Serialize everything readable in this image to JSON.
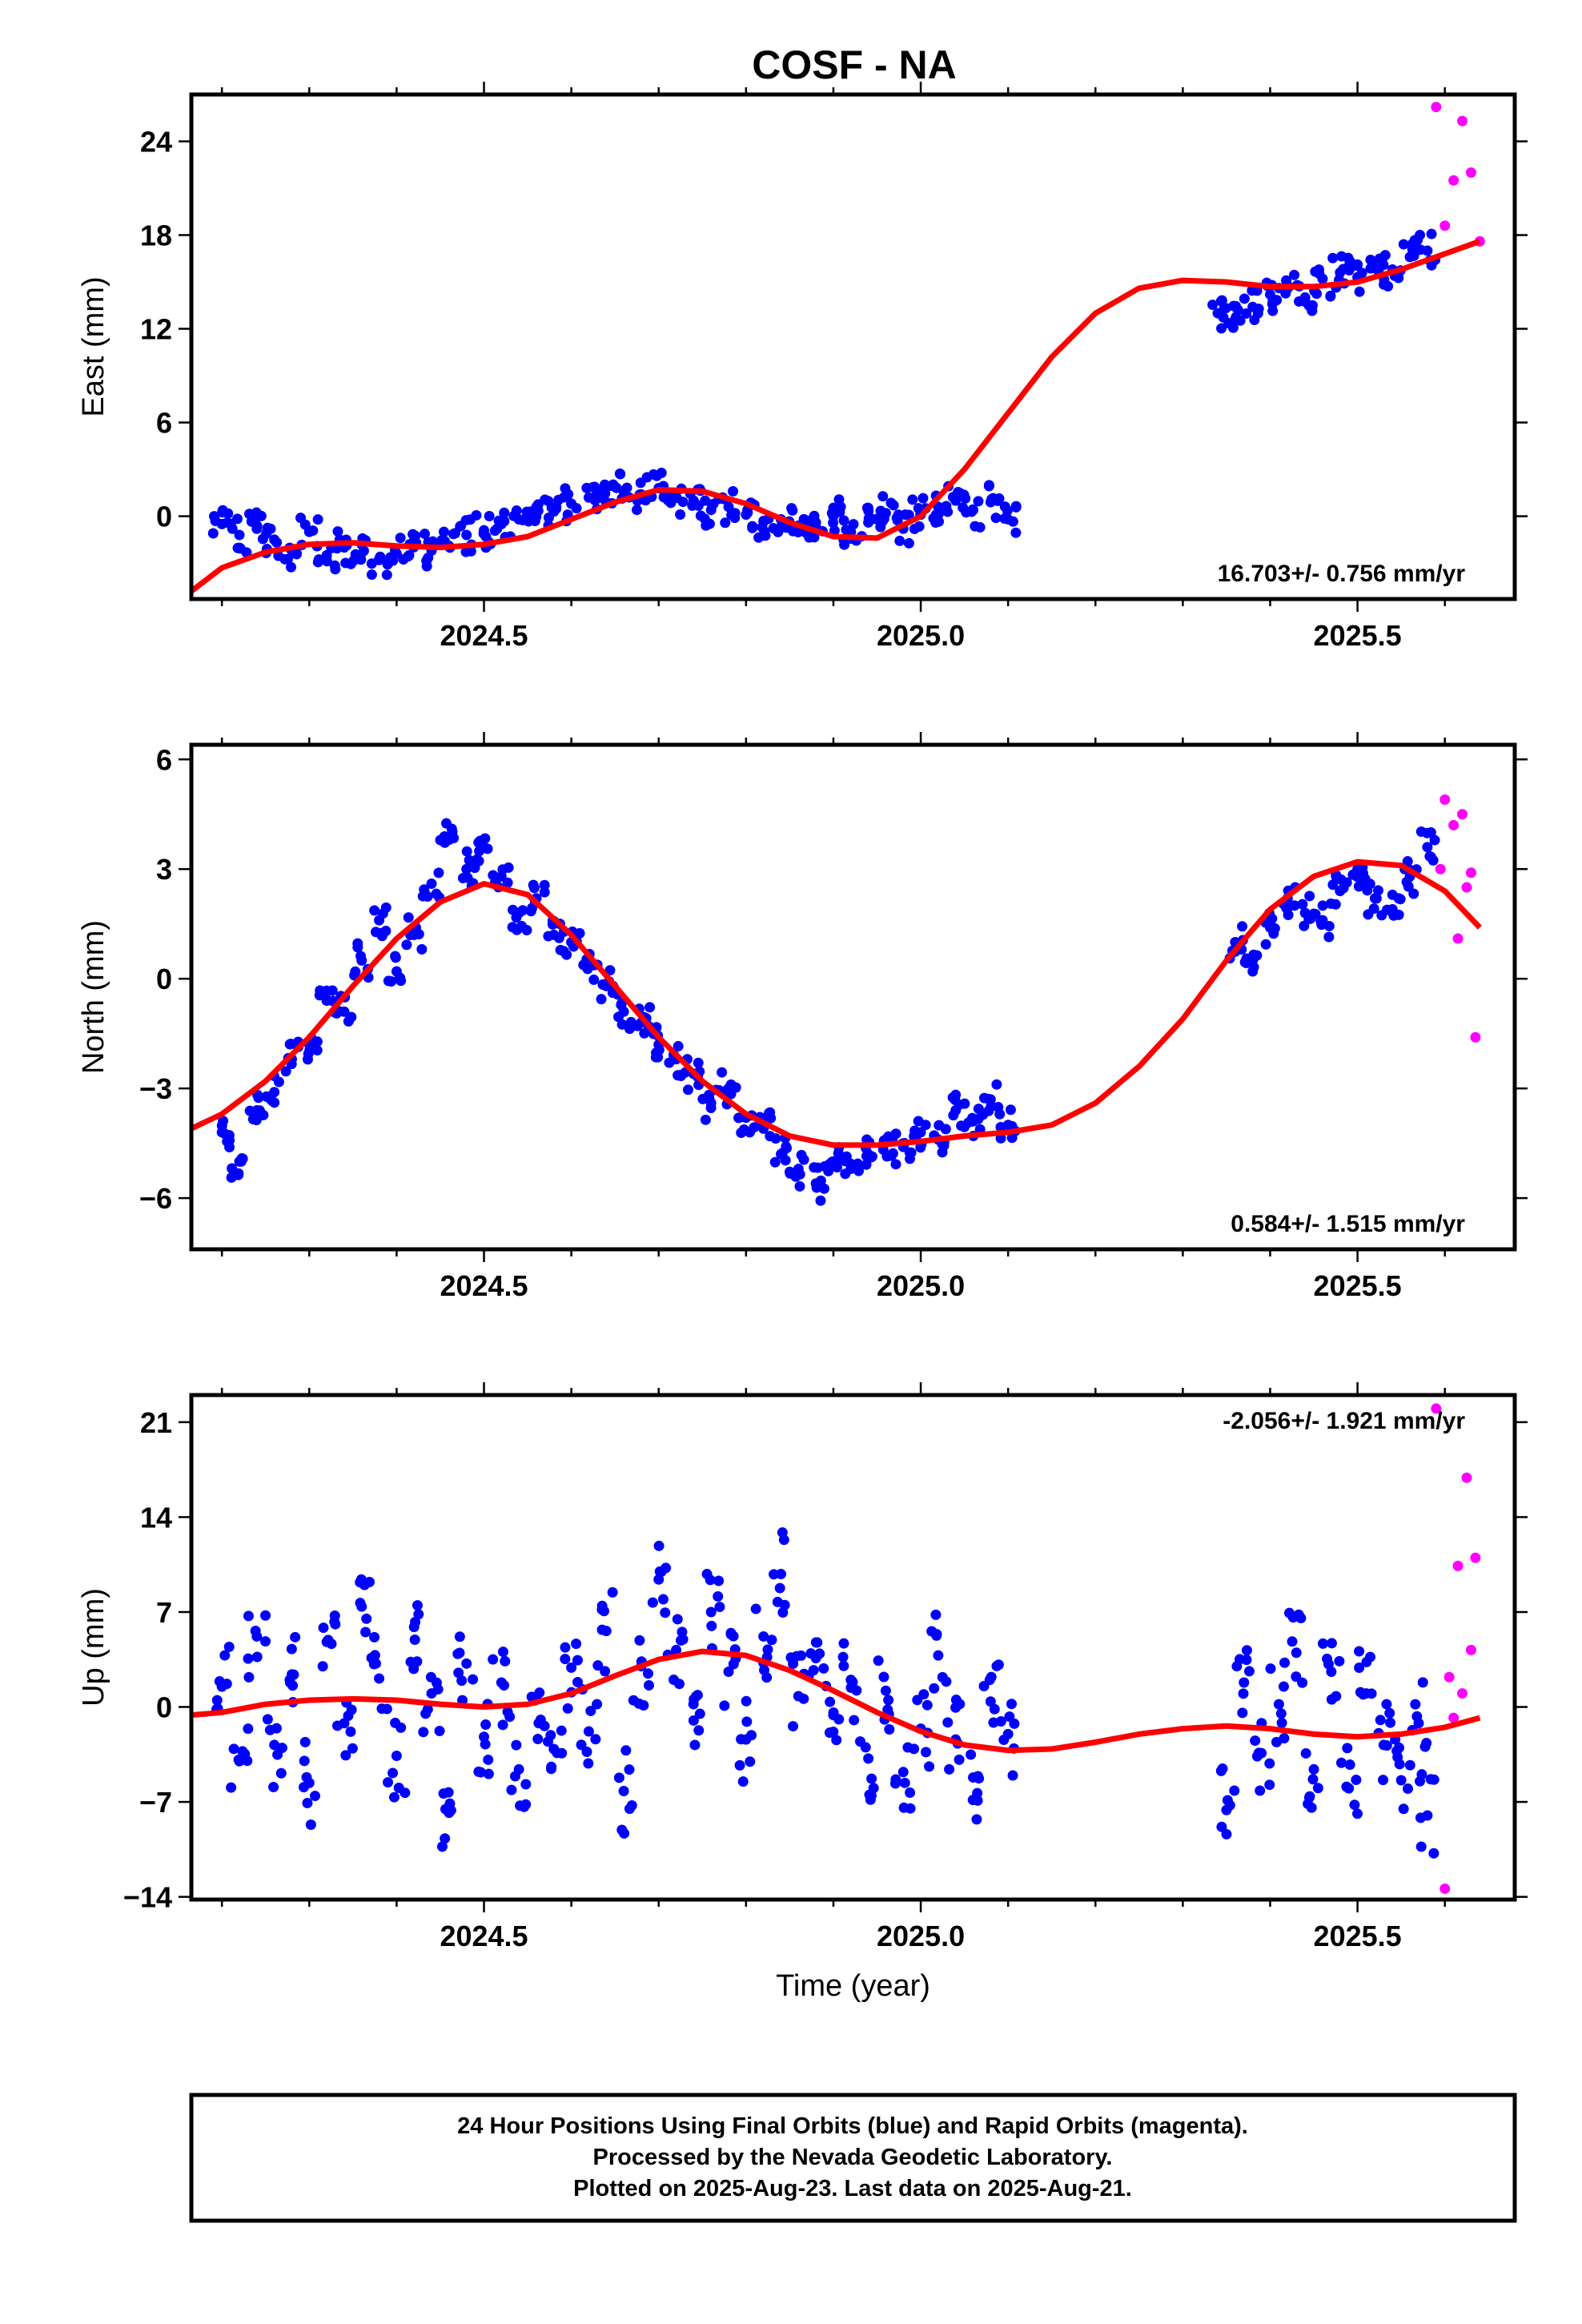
{
  "title": "COSF - NA",
  "footer": {
    "lines": [
      "24 Hour Positions Using Final Orbits (blue) and Rapid Orbits (magenta).",
      "Processed by the Nevada Geodetic Laboratory.",
      "Plotted on 2025-Aug-23. Last data on 2025-Aug-21."
    ]
  },
  "colors": {
    "final": "#0000ff",
    "rapid": "#ff00ff",
    "model": "#ff0000",
    "frame": "#000000"
  },
  "chart_data": [
    {
      "type": "scatter",
      "title": "COSF - NA",
      "ylabel": "East (mm)",
      "xlabel": "",
      "xlim": [
        2024.165,
        2025.68
      ],
      "ylim": [
        -5.3,
        27
      ],
      "xticks": [
        2024.5,
        2025.0,
        2025.5
      ],
      "xtick_labels": [
        "2024.5",
        "2025.0",
        "2025.5"
      ],
      "yticks": [
        0,
        6,
        12,
        18,
        24
      ],
      "ytick_labels": [
        "0",
        "6",
        "12",
        "18",
        "24"
      ],
      "rate": "16.703+/- 0.756 mm/yr",
      "rate_position": "bottom-right",
      "grid": false,
      "series": [
        {
          "role": "final orbits (blue)",
          "x": [
            2024.2,
            2024.22,
            2024.24,
            2024.26,
            2024.28,
            2024.3,
            2024.32,
            2024.34,
            2024.36,
            2024.38,
            2024.4,
            2024.42,
            2024.44,
            2024.46,
            2024.48,
            2024.5,
            2024.52,
            2024.54,
            2024.56,
            2024.58,
            2024.6,
            2024.62,
            2024.64,
            2024.66,
            2024.68,
            2024.7,
            2024.72,
            2024.74,
            2024.76,
            2024.78,
            2024.8,
            2024.82,
            2024.84,
            2024.86,
            2024.88,
            2024.9,
            2024.92,
            2024.94,
            2024.96,
            2024.98,
            2025.0,
            2025.02,
            2025.04,
            2025.06,
            2025.08,
            2025.1,
            2025.34,
            2025.36,
            2025.38,
            2025.4,
            2025.42,
            2025.44,
            2025.46,
            2025.48,
            2025.5,
            2025.52,
            2025.54,
            2025.56,
            2025.58
          ],
          "y": [
            -0.5,
            -1.2,
            -0.8,
            -1.5,
            -2.2,
            -1.0,
            -2.5,
            -2.0,
            -1.8,
            -2.8,
            -2.4,
            -1.6,
            -2.2,
            -1.9,
            -1.2,
            -0.9,
            -0.5,
            -0.2,
            0.6,
            0.3,
            0.8,
            1.2,
            0.9,
            1.6,
            1.4,
            1.8,
            1.2,
            1.0,
            0.4,
            0.6,
            0.1,
            -0.3,
            -0.2,
            -0.6,
            -0.4,
            0.0,
            -1.0,
            -0.4,
            0.2,
            -0.8,
            0.1,
            0.6,
            1.0,
            0.4,
            0.9,
            -0.2,
            13.0,
            12.6,
            13.4,
            14.2,
            14.6,
            14.0,
            15.2,
            15.6,
            15.3,
            16.0,
            15.8,
            16.6,
            17.0
          ]
        },
        {
          "role": "rapid orbits (magenta)",
          "x": [
            2025.59,
            2025.6,
            2025.61,
            2025.62,
            2025.63,
            2025.64
          ],
          "y": [
            26.2,
            18.6,
            21.5,
            25.3,
            22.0,
            17.6
          ]
        },
        {
          "role": "model fit (red)",
          "x": [
            2024.165,
            2024.2,
            2024.25,
            2024.3,
            2024.35,
            2024.4,
            2024.45,
            2024.5,
            2024.55,
            2024.6,
            2024.65,
            2024.7,
            2024.75,
            2024.8,
            2024.85,
            2024.9,
            2024.95,
            2025.0,
            2025.05,
            2025.1,
            2025.15,
            2025.2,
            2025.25,
            2025.3,
            2025.35,
            2025.4,
            2025.45,
            2025.5,
            2025.55,
            2025.6,
            2025.64
          ],
          "y": [
            -4.8,
            -3.3,
            -2.3,
            -1.8,
            -1.7,
            -1.9,
            -2.0,
            -1.8,
            -1.3,
            -0.2,
            0.9,
            1.7,
            1.6,
            0.8,
            -0.4,
            -1.3,
            -1.4,
            0.0,
            3.0,
            6.6,
            10.2,
            13.0,
            14.6,
            15.1,
            15.0,
            14.7,
            14.7,
            15.0,
            15.8,
            16.8,
            17.6
          ]
        }
      ]
    },
    {
      "type": "scatter",
      "title": "",
      "ylabel": "North (mm)",
      "xlabel": "",
      "xlim": [
        2024.165,
        2025.68
      ],
      "ylim": [
        -7.4,
        6.4
      ],
      "xticks": [
        2024.5,
        2025.0,
        2025.5
      ],
      "xtick_labels": [
        "2024.5",
        "2025.0",
        "2025.5"
      ],
      "yticks": [
        -6,
        -3,
        0,
        3,
        6
      ],
      "ytick_labels": [
        "-6",
        "-3",
        "0",
        "3",
        "6"
      ],
      "rate": "0.584+/- 1.515 mm/yr",
      "rate_position": "bottom-right",
      "grid": false,
      "series": [
        {
          "role": "final orbits (blue)",
          "x": [
            2024.2,
            2024.22,
            2024.24,
            2024.26,
            2024.28,
            2024.3,
            2024.32,
            2024.34,
            2024.36,
            2024.38,
            2024.4,
            2024.42,
            2024.44,
            2024.46,
            2024.48,
            2024.5,
            2024.52,
            2024.54,
            2024.56,
            2024.58,
            2024.6,
            2024.62,
            2024.64,
            2024.66,
            2024.68,
            2024.7,
            2024.72,
            2024.74,
            2024.76,
            2024.78,
            2024.8,
            2024.82,
            2024.84,
            2024.86,
            2024.88,
            2024.9,
            2024.92,
            2024.94,
            2024.96,
            2024.98,
            2025.0,
            2025.02,
            2025.04,
            2025.06,
            2025.08,
            2025.1,
            2025.36,
            2025.38,
            2025.4,
            2025.42,
            2025.44,
            2025.46,
            2025.48,
            2025.5,
            2025.52,
            2025.54,
            2025.56,
            2025.58
          ],
          "y": [
            -4.2,
            -5.0,
            -3.6,
            -3.1,
            -2.2,
            -1.8,
            -0.6,
            -0.9,
            0.5,
            1.6,
            0.2,
            1.2,
            2.6,
            3.8,
            3.0,
            3.6,
            2.8,
            1.8,
            2.2,
            1.2,
            1.0,
            0.4,
            -0.2,
            -0.9,
            -1.2,
            -1.8,
            -2.2,
            -2.6,
            -3.4,
            -3.0,
            -3.8,
            -4.1,
            -4.8,
            -5.2,
            -5.6,
            -5.0,
            -5.2,
            -4.8,
            -4.4,
            -4.6,
            -4.2,
            -4.4,
            -3.6,
            -3.9,
            -3.3,
            -4.0,
            1.0,
            0.2,
            1.4,
            2.2,
            1.8,
            1.6,
            2.4,
            3.0,
            2.2,
            1.9,
            2.8,
            3.6
          ],
          "outliers_note": ""
        },
        {
          "role": "rapid orbits (magenta)",
          "x": [
            2025.595,
            2025.6,
            2025.61,
            2025.615,
            2025.62,
            2025.625,
            2025.63,
            2025.635
          ],
          "y": [
            3.0,
            4.9,
            4.2,
            1.1,
            4.5,
            2.5,
            2.9,
            -1.6
          ]
        },
        {
          "role": "model fit (red)",
          "x": [
            2024.165,
            2024.2,
            2024.25,
            2024.3,
            2024.35,
            2024.4,
            2024.45,
            2024.5,
            2024.55,
            2024.6,
            2024.65,
            2024.7,
            2024.75,
            2024.8,
            2024.85,
            2024.9,
            2024.95,
            2025.0,
            2025.05,
            2025.1,
            2025.15,
            2025.2,
            2025.25,
            2025.3,
            2025.35,
            2025.4,
            2025.45,
            2025.5,
            2025.55,
            2025.6,
            2025.64
          ],
          "y": [
            -4.1,
            -3.7,
            -2.8,
            -1.6,
            -0.2,
            1.1,
            2.1,
            2.6,
            2.3,
            1.2,
            -0.2,
            -1.6,
            -2.8,
            -3.7,
            -4.3,
            -4.55,
            -4.55,
            -4.45,
            -4.3,
            -4.2,
            -4.0,
            -3.4,
            -2.4,
            -1.1,
            0.5,
            1.9,
            2.8,
            3.2,
            3.1,
            2.4,
            1.4
          ]
        }
      ]
    },
    {
      "type": "scatter",
      "title": "",
      "ylabel": "Up (mm)",
      "xlabel": "Time (year)",
      "xlim": [
        2024.165,
        2025.68
      ],
      "ylim": [
        -14.2,
        23
      ],
      "xticks": [
        2024.5,
        2025.0,
        2025.5
      ],
      "xtick_labels": [
        "2024.5",
        "2025.0",
        "2025.5"
      ],
      "yticks": [
        -14,
        -7,
        0,
        7,
        14,
        21
      ],
      "ytick_labels": [
        "-14",
        "-7",
        "0",
        "7",
        "14",
        "21"
      ],
      "rate": "-2.056+/- 1.921 mm/yr",
      "rate_position": "top-right",
      "grid": false,
      "series": [
        {
          "role": "final orbits (blue)",
          "x": [
            2024.2,
            2024.22,
            2024.24,
            2024.26,
            2024.28,
            2024.3,
            2024.32,
            2024.34,
            2024.36,
            2024.38,
            2024.4,
            2024.42,
            2024.44,
            2024.46,
            2024.48,
            2024.5,
            2024.52,
            2024.54,
            2024.56,
            2024.58,
            2024.6,
            2024.62,
            2024.64,
            2024.66,
            2024.68,
            2024.7,
            2024.72,
            2024.74,
            2024.76,
            2024.78,
            2024.8,
            2024.82,
            2024.84,
            2024.86,
            2024.88,
            2024.9,
            2024.92,
            2024.94,
            2024.96,
            2024.98,
            2025.0,
            2025.02,
            2025.04,
            2025.06,
            2025.08,
            2025.1,
            2025.35,
            2025.37,
            2025.39,
            2025.41,
            2025.43,
            2025.45,
            2025.47,
            2025.49,
            2025.51,
            2025.53,
            2025.55,
            2025.57,
            2025.58
          ],
          "y": [
            1.5,
            -4.0,
            5.2,
            -2.8,
            2.4,
            -5.6,
            4.8,
            -1.2,
            7.4,
            2.1,
            -3.6,
            5.9,
            1.0,
            -7.8,
            3.2,
            -2.2,
            1.8,
            -4.6,
            0.6,
            -3.1,
            2.9,
            -1.8,
            5.6,
            -6.2,
            3.0,
            9.4,
            4.2,
            -1.0,
            7.0,
            2.6,
            -2.4,
            5.2,
            9.8,
            0.8,
            3.6,
            -0.6,
            2.0,
            -3.8,
            1.2,
            -4.8,
            -1.6,
            3.8,
            -2.4,
            -5.2,
            0.4,
            -2.0,
            -7.6,
            1.8,
            -3.4,
            0.2,
            4.0,
            -4.6,
            2.6,
            -6.0,
            1.0,
            -2.8,
            -5.4,
            -1.2,
            -8.0
          ]
        },
        {
          "role": "rapid orbits (magenta)",
          "x": [
            2025.59,
            2025.6,
            2025.605,
            2025.61,
            2025.615,
            2025.62,
            2025.625,
            2025.63,
            2025.635
          ],
          "y": [
            22.0,
            -13.4,
            2.2,
            -0.8,
            10.4,
            1.0,
            16.9,
            4.2,
            11.0
          ]
        },
        {
          "role": "model fit (red)",
          "x": [
            2024.165,
            2024.2,
            2024.25,
            2024.3,
            2024.35,
            2024.4,
            2024.45,
            2024.5,
            2024.55,
            2024.6,
            2024.65,
            2024.7,
            2024.75,
            2024.8,
            2024.85,
            2024.9,
            2024.95,
            2025.0,
            2025.05,
            2025.1,
            2025.15,
            2025.2,
            2025.25,
            2025.3,
            2025.35,
            2025.4,
            2025.45,
            2025.5,
            2025.55,
            2025.6,
            2025.64
          ],
          "y": [
            -0.6,
            -0.4,
            0.2,
            0.5,
            0.6,
            0.5,
            0.2,
            0.0,
            0.2,
            1.0,
            2.3,
            3.5,
            4.1,
            3.8,
            2.7,
            1.2,
            -0.4,
            -1.8,
            -2.8,
            -3.2,
            -3.1,
            -2.6,
            -2.0,
            -1.6,
            -1.4,
            -1.6,
            -2.0,
            -2.2,
            -2.0,
            -1.5,
            -0.8
          ]
        }
      ]
    }
  ]
}
